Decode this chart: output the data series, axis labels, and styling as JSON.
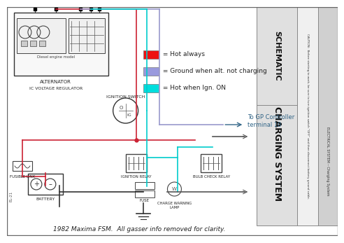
{
  "bg_color": "#ffffff",
  "title_bottom": "1982 Maxima FSM.  All gasser info removed for clarity.",
  "legend": [
    {
      "color": "#ee1111",
      "label": " = Hot always"
    },
    {
      "color": "#9999dd",
      "label": " = Ground when alt. not charging"
    },
    {
      "color": "#00dddd",
      "label": " = Hot when Ign. ON"
    }
  ],
  "gp_label": "To GP Controller\nterminal 10",
  "wire_red": "#cc2233",
  "wire_purple": "#9999cc",
  "wire_cyan": "#00cccc",
  "wire_black": "#333333",
  "wire_dark": "#555555",
  "panel1_color": "#e0e0e0",
  "panel2_color": "#d0d0d0",
  "schematic_text": "SCHEMATIC",
  "charging_text": "CHARGING SYSTEM",
  "electrical_text": "ELECTRICAL SYSTEM – Charging System",
  "caution_text": "CAUTION:  Before starting to work, be sure to turn ignition switch “OFF” and then disconnect battery ground cable."
}
